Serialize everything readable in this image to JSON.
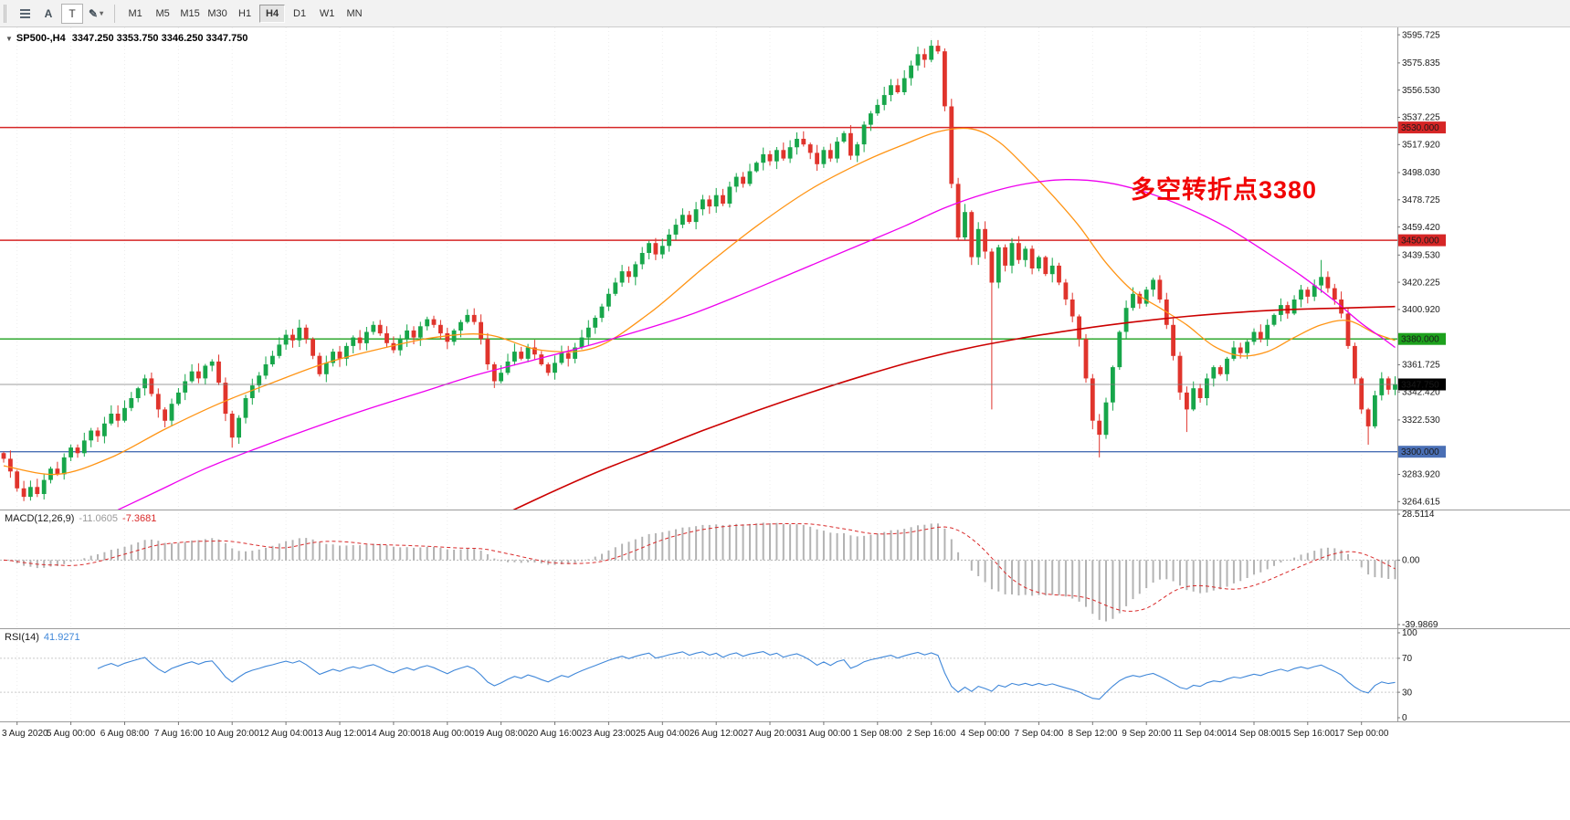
{
  "colors": {
    "candle_up": "#17a64a",
    "candle_down": "#e0342c",
    "grid": "#ededed",
    "macd_hist": "#b3b3b3",
    "macd_signal": "#d92b2b",
    "rsi_line": "#3f87d9",
    "annotation_red": "#f10505"
  },
  "toolbar": {
    "tools": {
      "a_label": "A",
      "t_label": "T",
      "draw_icon": "✎"
    },
    "timeframes": [
      "M1",
      "M5",
      "M15",
      "M30",
      "H1",
      "H4",
      "D1",
      "W1",
      "MN"
    ],
    "active": "H4"
  },
  "chart": {
    "title": "SP500-,H4",
    "ohlc": "3347.250 3353.750 3346.250 3347.750",
    "annotation": "多空转折点3380",
    "current_price": {
      "value": 3347.75,
      "label": "3347.750"
    },
    "price_axis": {
      "min": 3259,
      "max": 3601,
      "ticks": [
        3595.725,
        3575.835,
        3556.53,
        3537.225,
        3517.92,
        3498.03,
        3478.725,
        3459.42,
        3439.53,
        3420.225,
        3400.92,
        3361.725,
        3342.42,
        3322.53,
        3283.92,
        3264.615
      ]
    },
    "levels": [
      {
        "value": 3530,
        "label": "3530.000",
        "color": "#d62626",
        "width": 1.5
      },
      {
        "value": 3450,
        "label": "3450.000",
        "color": "#d62626",
        "width": 1.5
      },
      {
        "value": 3380,
        "label": "3380.000",
        "color": "#1da11d",
        "width": 1.3
      },
      {
        "value": 3300,
        "label": "3300.000",
        "color": "#4a6fb5",
        "width": 1.3
      }
    ],
    "time_axis": {
      "labels": [
        {
          "text": "3 Aug 2020",
          "bar": 2
        },
        {
          "text": "5 Aug 00:00",
          "bar": 10
        },
        {
          "text": "6 Aug 08:00",
          "bar": 18
        },
        {
          "text": "7 Aug 16:00",
          "bar": 26
        },
        {
          "text": "10 Aug 20:00",
          "bar": 34
        },
        {
          "text": "12 Aug 04:00",
          "bar": 42
        },
        {
          "text": "13 Aug 12:00",
          "bar": 50
        },
        {
          "text": "14 Aug 20:00",
          "bar": 58
        },
        {
          "text": "18 Aug 00:00",
          "bar": 66
        },
        {
          "text": "19 Aug 08:00",
          "bar": 74
        },
        {
          "text": "20 Aug 16:00",
          "bar": 82
        },
        {
          "text": "23 Aug 23:00",
          "bar": 90
        },
        {
          "text": "25 Aug 04:00",
          "bar": 98
        },
        {
          "text": "26 Aug 12:00",
          "bar": 106
        },
        {
          "text": "27 Aug 20:00",
          "bar": 114
        },
        {
          "text": "31 Aug 00:00",
          "bar": 122
        },
        {
          "text": "1 Sep 08:00",
          "bar": 130
        },
        {
          "text": "2 Sep 16:00",
          "bar": 138
        },
        {
          "text": "4 Sep 00:00",
          "bar": 146
        },
        {
          "text": "7 Sep 04:00",
          "bar": 154
        },
        {
          "text": "8 Sep 12:00",
          "bar": 162
        },
        {
          "text": "9 Sep 20:00",
          "bar": 170
        },
        {
          "text": "11 Sep 04:00",
          "bar": 178
        },
        {
          "text": "14 Sep 08:00",
          "bar": 186
        },
        {
          "text": "15 Sep 16:00",
          "bar": 194
        },
        {
          "text": "17 Sep 00:00",
          "bar": 202
        }
      ]
    },
    "candles": {
      "first_open": 3299,
      "closes": [
        3295,
        3286,
        3274,
        3268,
        3275,
        3270,
        3280,
        3288,
        3284,
        3296,
        3303,
        3299,
        3308,
        3315,
        3311,
        3320,
        3327,
        3322,
        3331,
        3338,
        3345,
        3352,
        3341,
        3330,
        3322,
        3334,
        3342,
        3350,
        3357,
        3352,
        3361,
        3364,
        3349,
        3327,
        3310,
        3324,
        3338,
        3347,
        3354,
        3362,
        3368,
        3376,
        3383,
        3379,
        3388,
        3380,
        3368,
        3355,
        3363,
        3371,
        3366,
        3375,
        3381,
        3377,
        3385,
        3390,
        3384,
        3377,
        3372,
        3380,
        3386,
        3381,
        3389,
        3394,
        3390,
        3384,
        3378,
        3386,
        3392,
        3397,
        3392,
        3380,
        3362,
        3350,
        3356,
        3364,
        3371,
        3366,
        3374,
        3369,
        3362,
        3356,
        3363,
        3370,
        3366,
        3374,
        3381,
        3388,
        3395,
        3403,
        3412,
        3420,
        3428,
        3424,
        3433,
        3441,
        3448,
        3440,
        3446,
        3454,
        3461,
        3468,
        3463,
        3472,
        3479,
        3474,
        3482,
        3476,
        3488,
        3495,
        3490,
        3499,
        3505,
        3511,
        3506,
        3514,
        3508,
        3516,
        3522,
        3518,
        3512,
        3504,
        3514,
        3508,
        3520,
        3526,
        3510,
        3518,
        3532,
        3540,
        3546,
        3553,
        3560,
        3555,
        3565,
        3574,
        3582,
        3578,
        3588,
        3584,
        3545,
        3490,
        3452,
        3470,
        3438,
        3458,
        3442,
        3420,
        3445,
        3432,
        3448,
        3436,
        3444,
        3430,
        3438,
        3426,
        3432,
        3420,
        3408,
        3396,
        3380,
        3352,
        3322,
        3312,
        3335,
        3360,
        3385,
        3402,
        3412,
        3405,
        3415,
        3422,
        3408,
        3390,
        3368,
        3342,
        3330,
        3345,
        3338,
        3352,
        3360,
        3355,
        3366,
        3374,
        3370,
        3378,
        3385,
        3380,
        3390,
        3397,
        3404,
        3398,
        3408,
        3415,
        3410,
        3418,
        3424,
        3416,
        3408,
        3398,
        3375,
        3352,
        3330,
        3318,
        3340,
        3352,
        3344,
        3348
      ],
      "wick_overrides": [
        {
          "i": 34,
          "low": 3303
        },
        {
          "i": 138,
          "high": 3592
        },
        {
          "i": 147,
          "low": 3330
        },
        {
          "i": 163,
          "low": 3296
        },
        {
          "i": 176,
          "low": 3314
        },
        {
          "i": 196,
          "high": 3436
        },
        {
          "i": 203,
          "low": 3305
        }
      ]
    },
    "moving_averages": [
      {
        "name": "ma-fast-orange",
        "color": "#ff9414",
        "width": 1.3,
        "points": [
          [
            0,
            3290
          ],
          [
            8,
            3284
          ],
          [
            16,
            3296
          ],
          [
            24,
            3316
          ],
          [
            32,
            3334
          ],
          [
            40,
            3349
          ],
          [
            48,
            3363
          ],
          [
            56,
            3373
          ],
          [
            64,
            3381
          ],
          [
            72,
            3383
          ],
          [
            80,
            3372
          ],
          [
            88,
            3374
          ],
          [
            96,
            3398
          ],
          [
            104,
            3430
          ],
          [
            112,
            3460
          ],
          [
            120,
            3486
          ],
          [
            128,
            3506
          ],
          [
            134,
            3518
          ],
          [
            139,
            3527
          ],
          [
            144,
            3529
          ],
          [
            148,
            3520
          ],
          [
            152,
            3502
          ],
          [
            156,
            3482
          ],
          [
            160,
            3460
          ],
          [
            164,
            3434
          ],
          [
            168,
            3414
          ],
          [
            172,
            3402
          ],
          [
            176,
            3390
          ],
          [
            180,
            3375
          ],
          [
            184,
            3368
          ],
          [
            188,
            3371
          ],
          [
            192,
            3381
          ],
          [
            196,
            3390
          ],
          [
            200,
            3393
          ],
          [
            204,
            3384
          ],
          [
            207,
            3379
          ]
        ]
      },
      {
        "name": "ma-mid-magenta",
        "color": "#ee00ee",
        "width": 1.3,
        "points": [
          [
            14,
            3252
          ],
          [
            22,
            3270
          ],
          [
            30,
            3288
          ],
          [
            38,
            3303
          ],
          [
            46,
            3317
          ],
          [
            54,
            3330
          ],
          [
            62,
            3342
          ],
          [
            70,
            3354
          ],
          [
            78,
            3364
          ],
          [
            86,
            3374
          ],
          [
            94,
            3385
          ],
          [
            102,
            3397
          ],
          [
            110,
            3412
          ],
          [
            118,
            3428
          ],
          [
            126,
            3444
          ],
          [
            134,
            3460
          ],
          [
            140,
            3473
          ],
          [
            146,
            3483
          ],
          [
            152,
            3490
          ],
          [
            158,
            3493
          ],
          [
            164,
            3491
          ],
          [
            170,
            3484
          ],
          [
            176,
            3473
          ],
          [
            182,
            3459
          ],
          [
            188,
            3441
          ],
          [
            193,
            3425
          ],
          [
            198,
            3407
          ],
          [
            202,
            3391
          ],
          [
            205,
            3381
          ],
          [
            207,
            3374
          ]
        ]
      },
      {
        "name": "ma-slow-red",
        "color": "#cc0000",
        "width": 1.6,
        "points": [
          [
            72,
            3250
          ],
          [
            80,
            3268
          ],
          [
            88,
            3285
          ],
          [
            96,
            3300
          ],
          [
            104,
            3315
          ],
          [
            112,
            3329
          ],
          [
            120,
            3342
          ],
          [
            128,
            3354
          ],
          [
            136,
            3365
          ],
          [
            144,
            3374
          ],
          [
            152,
            3381
          ],
          [
            160,
            3387
          ],
          [
            168,
            3392
          ],
          [
            176,
            3396
          ],
          [
            184,
            3399
          ],
          [
            192,
            3401
          ],
          [
            200,
            3402
          ],
          [
            207,
            3403
          ]
        ]
      }
    ]
  },
  "macd": {
    "name": "MACD(12,26,9)",
    "main": "-11.0605",
    "signal": "-7.3681",
    "axis": {
      "max": 28.5114,
      "min": -39.9869,
      "ticks": [
        {
          "label": "28.5114",
          "value": 28.5114
        },
        {
          "label": "0.00",
          "value": 0
        },
        {
          "label": "-39.9869",
          "value": -39.9869
        }
      ]
    }
  },
  "rsi": {
    "name": "RSI(14)",
    "value": "41.9271",
    "levels": [
      70,
      30
    ],
    "axis": {
      "ticks": [
        {
          "label": "100",
          "value": 100
        },
        {
          "label": "70",
          "value": 70
        },
        {
          "label": "30",
          "value": 30
        },
        {
          "label": "0",
          "value": 0
        }
      ]
    }
  }
}
